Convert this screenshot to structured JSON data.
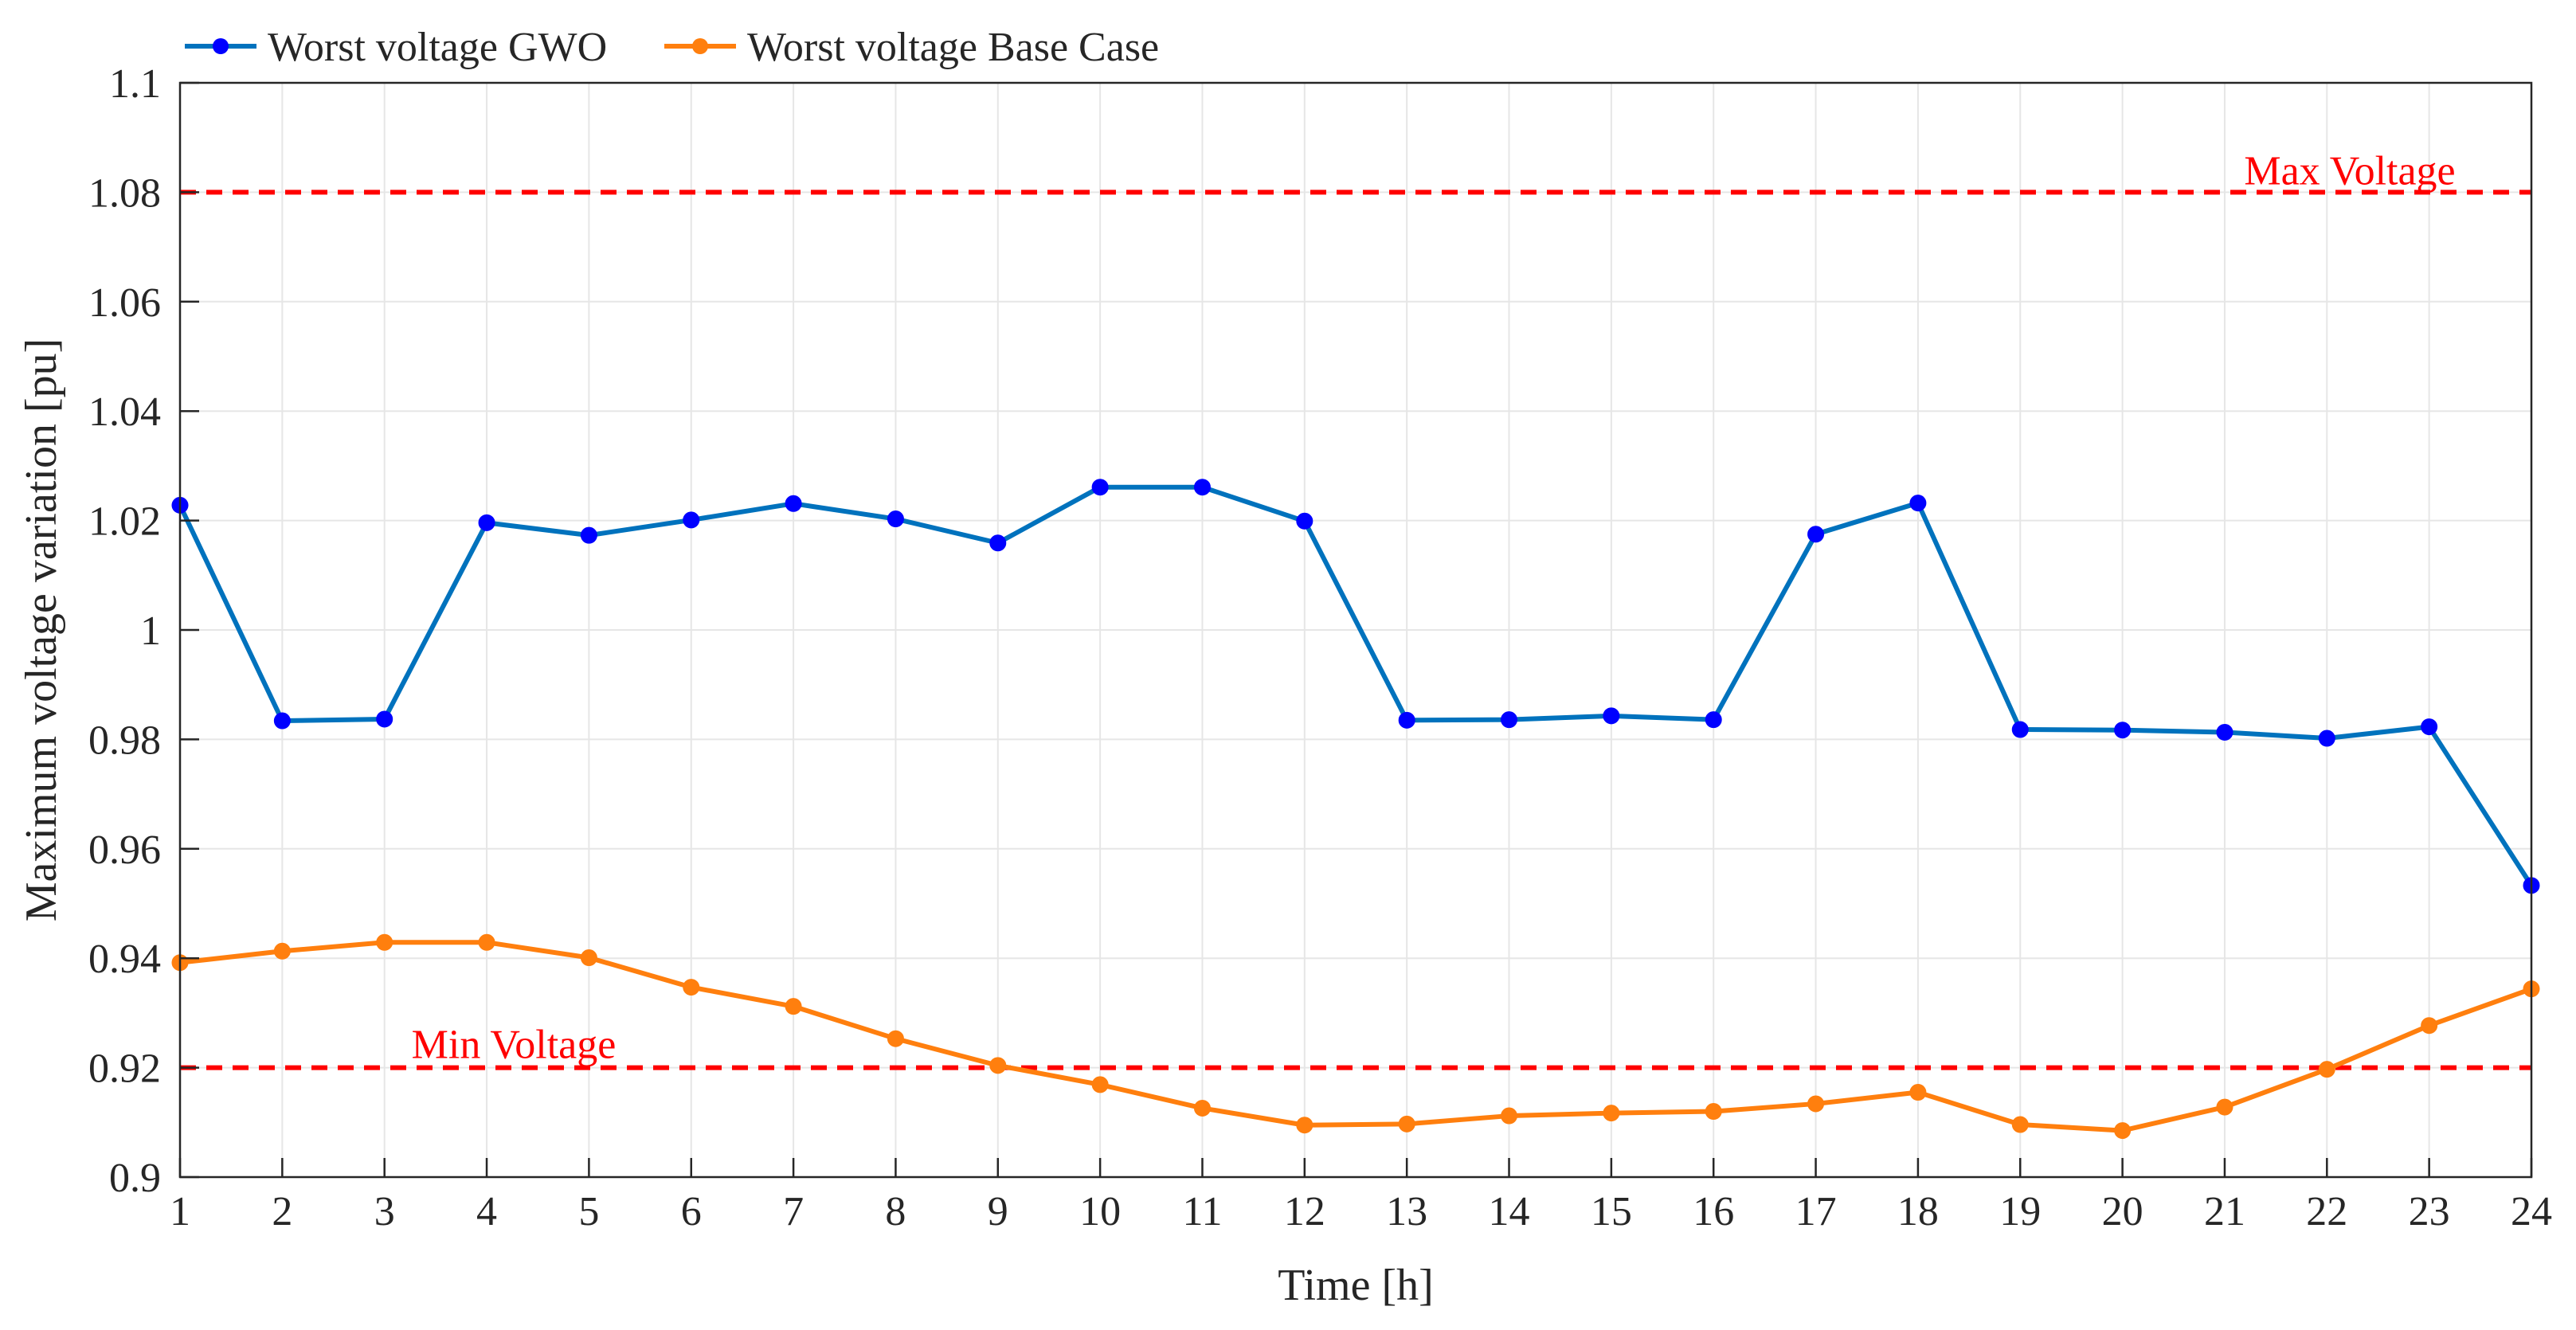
{
  "chart_data": {
    "type": "line",
    "title": "",
    "xlabel": "Time [h]",
    "ylabel": "Maximum voltage variation [pu]",
    "xlim": [
      1,
      24
    ],
    "ylim": [
      0.9,
      1.1
    ],
    "x": [
      1,
      2,
      3,
      4,
      5,
      6,
      7,
      8,
      9,
      10,
      11,
      12,
      13,
      14,
      15,
      16,
      17,
      18,
      19,
      20,
      21,
      22,
      23,
      24
    ],
    "x_ticks": [
      "1",
      "2",
      "3",
      "4",
      "5",
      "6",
      "7",
      "8",
      "9",
      "10",
      "11",
      "12",
      "13",
      "14",
      "15",
      "16",
      "17",
      "18",
      "19",
      "20",
      "21",
      "22",
      "23",
      "24"
    ],
    "y_ticks": [
      0.9,
      0.92,
      0.94,
      0.96,
      0.98,
      1.0,
      1.02,
      1.04,
      1.06,
      1.08,
      1.1
    ],
    "y_tick_labels": [
      "0.9",
      "0.92",
      "0.94",
      "0.96",
      "0.98",
      "1",
      "1.02",
      "1.04",
      "1.06",
      "1.08",
      "1.1"
    ],
    "grid": true,
    "legend_position": "top-left, outside plot",
    "series": [
      {
        "name": "Worst voltage GWO",
        "color": "#0072BD",
        "marker_color": "#0000FF",
        "values": [
          1.0228,
          0.9834,
          0.9837,
          1.0196,
          1.0173,
          1.0201,
          1.0231,
          1.0203,
          1.0159,
          1.0261,
          1.0261,
          1.0199,
          0.9835,
          0.9836,
          0.9843,
          0.9836,
          1.0175,
          1.0232,
          0.9818,
          0.9817,
          0.9813,
          0.9802,
          0.9823,
          0.9533
        ]
      },
      {
        "name": "Worst voltage Base Case",
        "color": "#FF7F0E",
        "marker_color": "#FF7F0E",
        "values": [
          0.9392,
          0.9413,
          0.9429,
          0.9429,
          0.9401,
          0.9347,
          0.9312,
          0.9253,
          0.9204,
          0.9169,
          0.9126,
          0.9095,
          0.9097,
          0.9112,
          0.9117,
          0.912,
          0.9134,
          0.9155,
          0.9096,
          0.9085,
          0.9128,
          0.9197,
          0.9277,
          0.9344
        ]
      }
    ],
    "reference_lines": [
      {
        "label": "Max Voltage",
        "value": 1.08,
        "color": "#FF0000"
      },
      {
        "label": "Min Voltage",
        "value": 0.92,
        "color": "#FF0000"
      }
    ]
  }
}
